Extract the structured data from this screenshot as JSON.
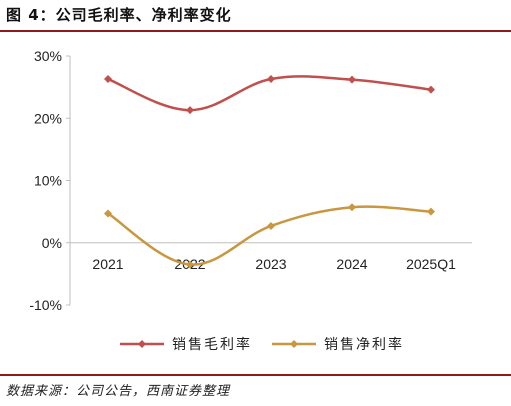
{
  "header": {
    "title": "图 4：公司毛利率、净利率变化"
  },
  "footer": {
    "source": "数据来源：公司公告，西南证券整理"
  },
  "colors": {
    "gross": "#c0504d",
    "net": "#c9973f",
    "rule": "#8e1b1b",
    "axis": "#bfbfbf",
    "text": "#222222"
  },
  "chart_data": {
    "type": "line",
    "title": "",
    "xlabel": "",
    "ylabel": "",
    "categories": [
      "2021",
      "2022",
      "2023",
      "2024",
      "2025Q1"
    ],
    "yticks": [
      "30%",
      "20%",
      "10%",
      "0%",
      "-10%"
    ],
    "ylim": [
      -10,
      30
    ],
    "grid": false,
    "legend": "bottom",
    "series": [
      {
        "name": "销售毛利率",
        "values": [
          26.3,
          21.3,
          26.3,
          26.2,
          24.6
        ],
        "color": "#c0504d"
      },
      {
        "name": "销售净利率",
        "values": [
          4.7,
          -3.5,
          2.7,
          5.7,
          5.0
        ],
        "color": "#c9973f"
      }
    ]
  }
}
